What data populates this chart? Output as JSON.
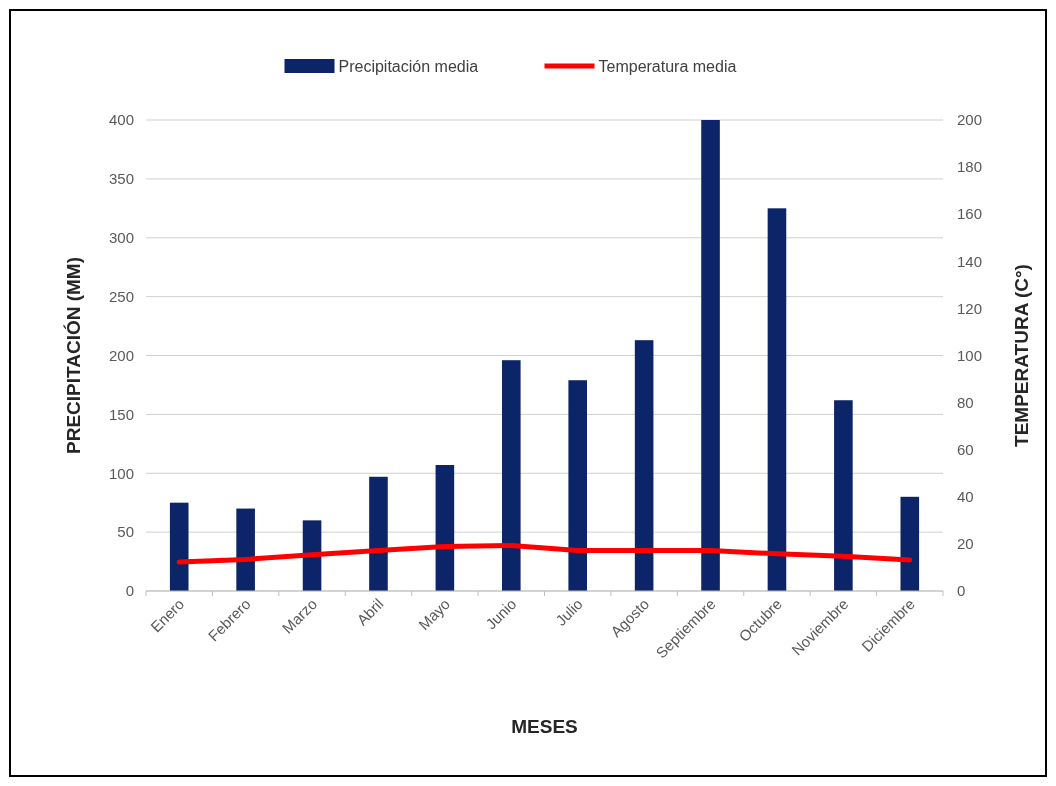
{
  "chart_data": {
    "type": "bar",
    "xlabel": "MESES",
    "ylabel": "PRECIPITACIÓN (MM)",
    "y2label": "TEMPERATURA (C°)",
    "categories": [
      "Enero",
      "Febrero",
      "Marzo",
      "Abril",
      "Mayo",
      "Junio",
      "Julio",
      "Agosto",
      "Septiembre",
      "Octubre",
      "Noviembre",
      "Diciembre"
    ],
    "series": [
      {
        "name": "Precipitación media",
        "color": "#0c2468",
        "values": [
          75,
          70,
          60,
          97,
          107,
          196,
          179,
          213,
          400,
          325,
          162,
          80
        ]
      },
      {
        "name": "Temperatura media",
        "color": "#ff0000",
        "type": "line",
        "axis": "y2",
        "values": [
          12.3,
          13.4,
          15.4,
          17.2,
          18.9,
          19.3,
          17.2,
          17.2,
          17.2,
          15.8,
          14.8,
          13.2
        ]
      }
    ],
    "ylim": [
      0,
      400
    ],
    "yticks": [
      0,
      50,
      100,
      150,
      200,
      250,
      300,
      350,
      400
    ],
    "y2lim": [
      0,
      200
    ],
    "y2ticks": [
      0,
      20,
      40,
      60,
      80,
      100,
      120,
      140,
      160,
      180,
      200
    ],
    "grid": "y",
    "legend": "top",
    "marker": "none",
    "line_style": "solid"
  }
}
